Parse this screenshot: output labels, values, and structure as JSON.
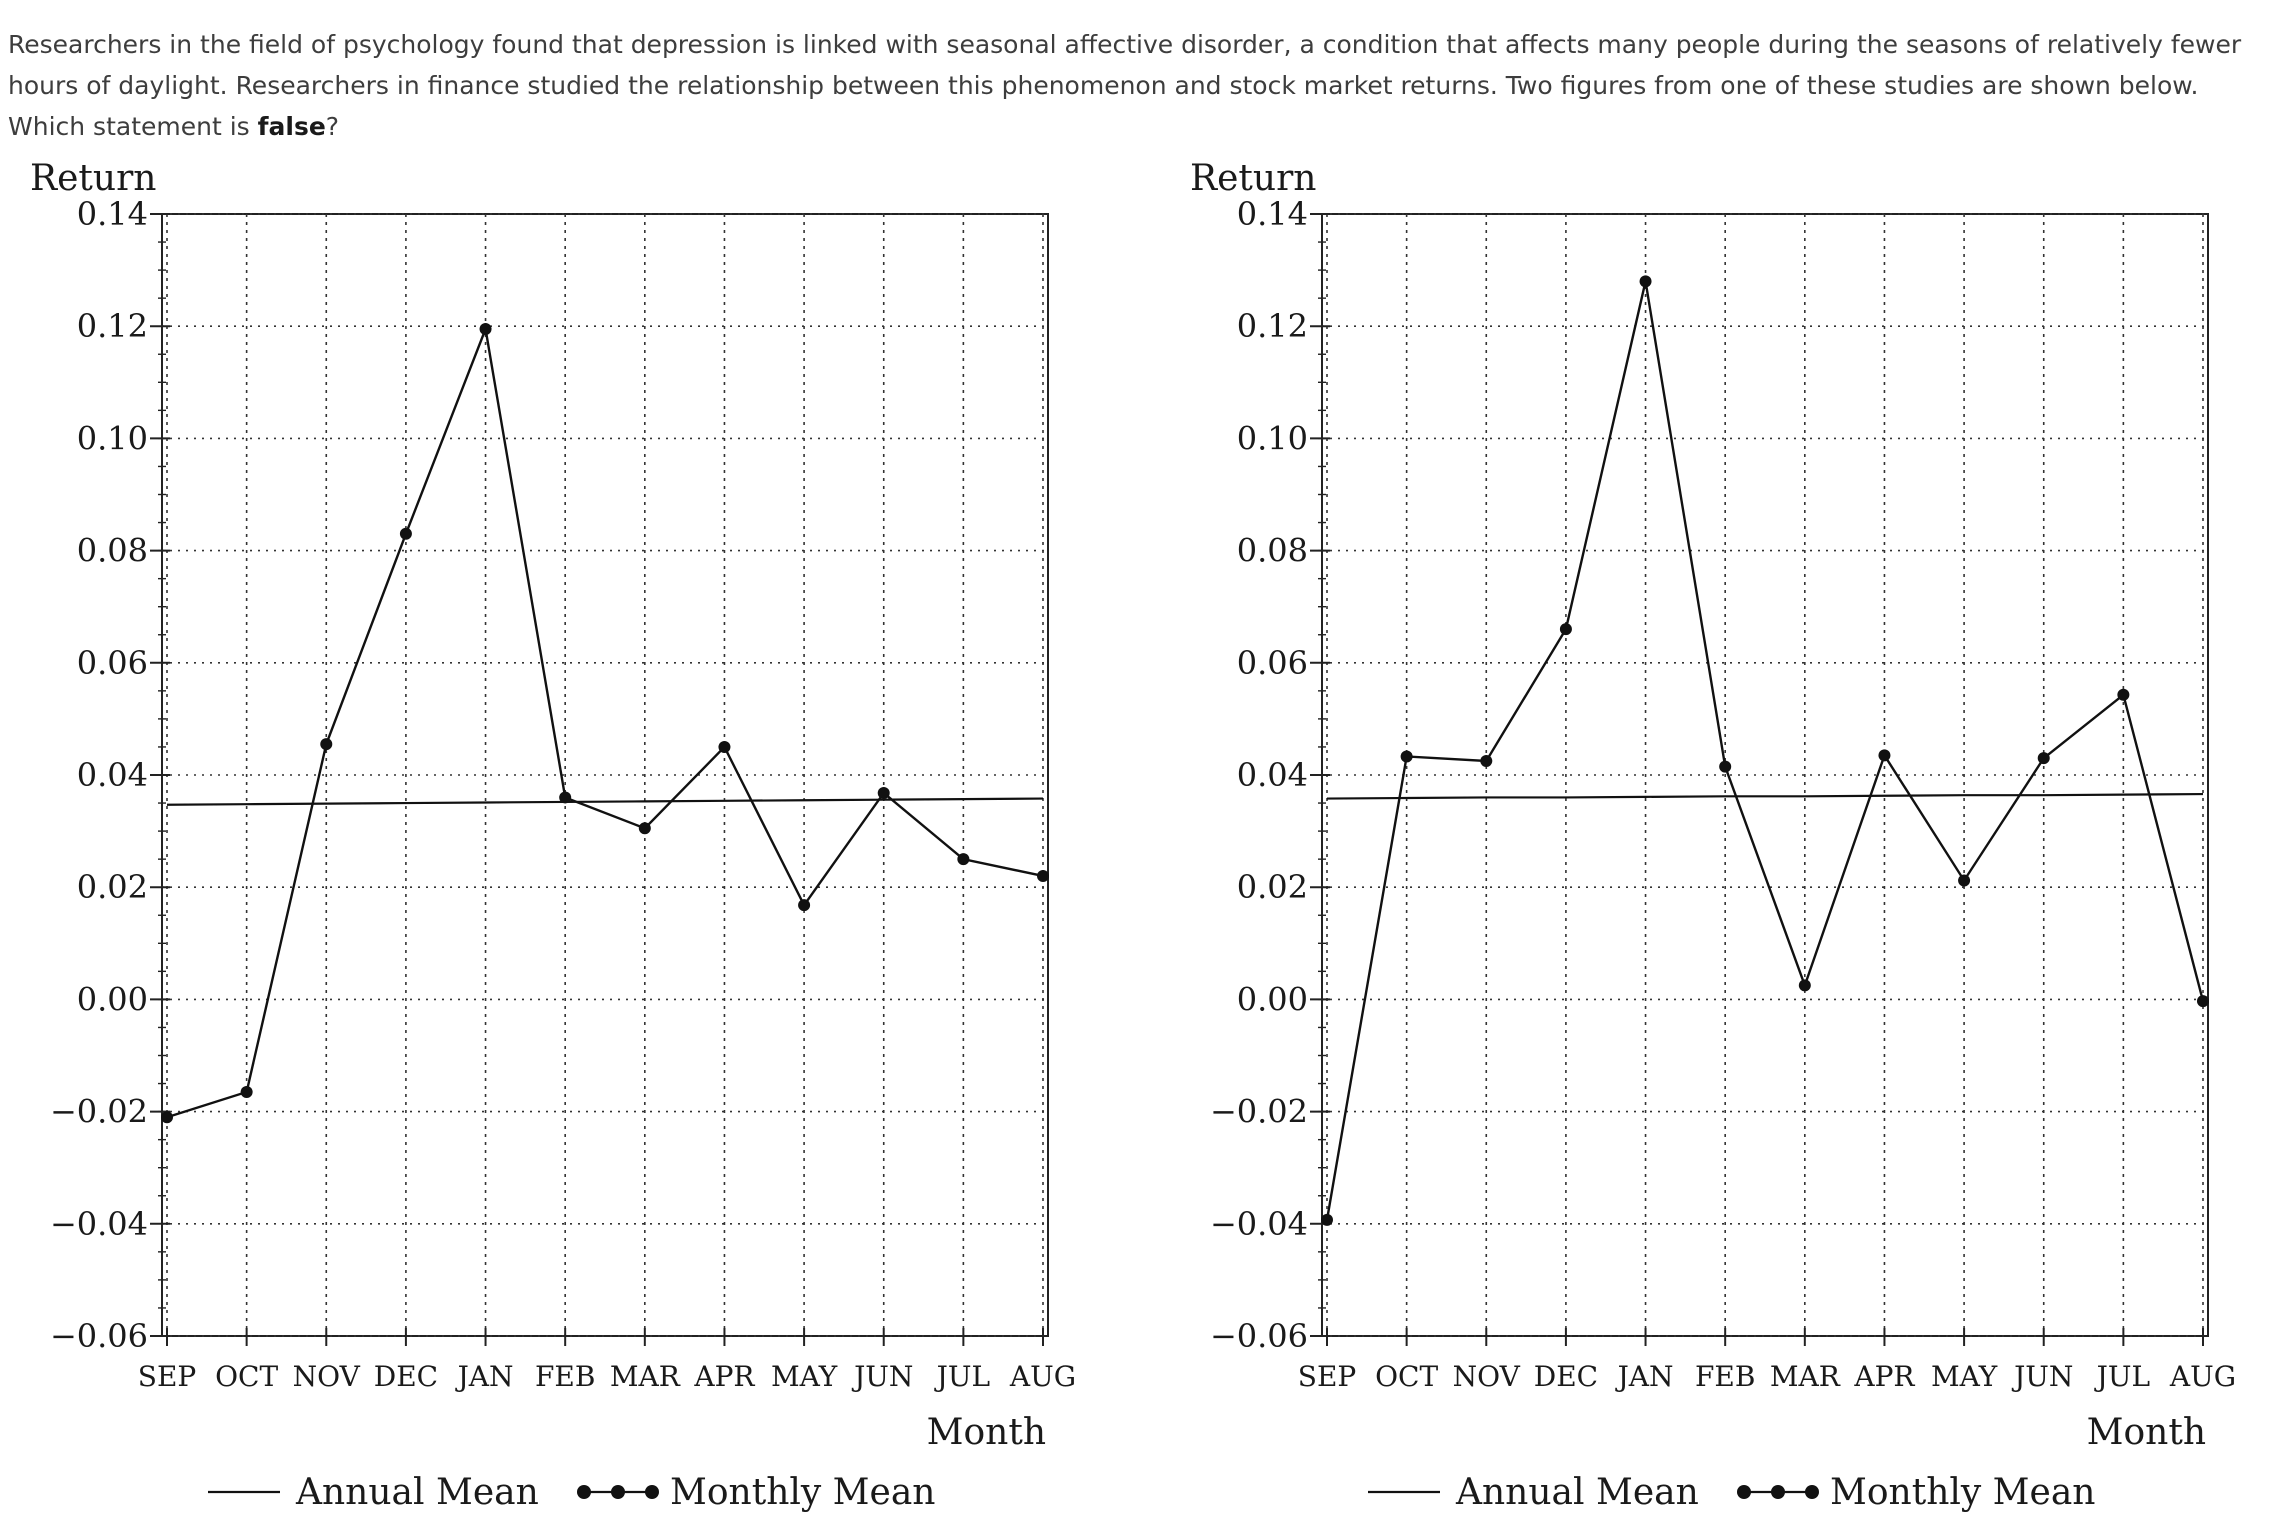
{
  "question": {
    "text_before": "Researchers in the field of psychology found that depression is linked with seasonal affective disorder, a condition that affects many people during the seasons of relatively fewer hours of daylight. Researchers in finance studied the relationship between this phenomenon and stock market returns. Two figures from one of these studies are shown below. Which statement is ",
    "emphasis": "false",
    "text_after": "?"
  },
  "chart_data": [
    {
      "type": "line",
      "title": "",
      "ylabel": "Return",
      "xlabel": "Month",
      "categories": [
        "SEP",
        "OCT",
        "NOV",
        "DEC",
        "JAN",
        "FEB",
        "MAR",
        "APR",
        "MAY",
        "JUN",
        "JUL",
        "AUG"
      ],
      "ylim": [
        -0.06,
        0.14
      ],
      "yticks": [
        "0.14",
        "0.12",
        "0.10",
        "0.08",
        "0.06",
        "0.04",
        "0.02",
        "0.00",
        "−0.02",
        "−0.04",
        "−0.06"
      ],
      "ytick_values": [
        0.14,
        0.12,
        0.1,
        0.08,
        0.06,
        0.04,
        0.02,
        0.0,
        -0.02,
        -0.04,
        -0.06
      ],
      "grid": true,
      "legend_placement": "bottom",
      "series": [
        {
          "name": "Annual Mean",
          "style": "line",
          "values": [
            0.0347,
            0.0348,
            0.0349,
            0.035,
            0.0351,
            0.0352,
            0.0353,
            0.0354,
            0.0355,
            0.0356,
            0.0357,
            0.0358
          ]
        },
        {
          "name": "Monthly Mean",
          "style": "line-markers",
          "values": [
            -0.021,
            -0.0165,
            0.0455,
            0.083,
            0.1195,
            0.036,
            0.0305,
            0.045,
            0.0168,
            0.0368,
            0.025,
            0.022
          ]
        }
      ]
    },
    {
      "type": "line",
      "title": "",
      "ylabel": "Return",
      "xlabel": "Month",
      "categories": [
        "SEP",
        "OCT",
        "NOV",
        "DEC",
        "JAN",
        "FEB",
        "MAR",
        "APR",
        "MAY",
        "JUN",
        "JUL",
        "AUG"
      ],
      "ylim": [
        -0.06,
        0.14
      ],
      "yticks": [
        "0.14",
        "0.12",
        "0.10",
        "0.08",
        "0.06",
        "0.04",
        "0.02",
        "0.00",
        "−0.02",
        "−0.04",
        "−0.06"
      ],
      "ytick_values": [
        0.14,
        0.12,
        0.1,
        0.08,
        0.06,
        0.04,
        0.02,
        0.0,
        -0.02,
        -0.04,
        -0.06
      ],
      "grid": true,
      "legend_placement": "bottom",
      "series": [
        {
          "name": "Annual Mean",
          "style": "line",
          "values": [
            0.0358,
            0.0359,
            0.036,
            0.036,
            0.0361,
            0.0362,
            0.0362,
            0.0363,
            0.0364,
            0.0364,
            0.0365,
            0.0366
          ]
        },
        {
          "name": "Monthly Mean",
          "style": "line-markers",
          "values": [
            -0.0393,
            0.0433,
            0.0425,
            0.066,
            0.128,
            0.0415,
            0.0025,
            0.0435,
            0.0212,
            0.043,
            0.0543,
            -0.0003
          ]
        }
      ]
    }
  ]
}
